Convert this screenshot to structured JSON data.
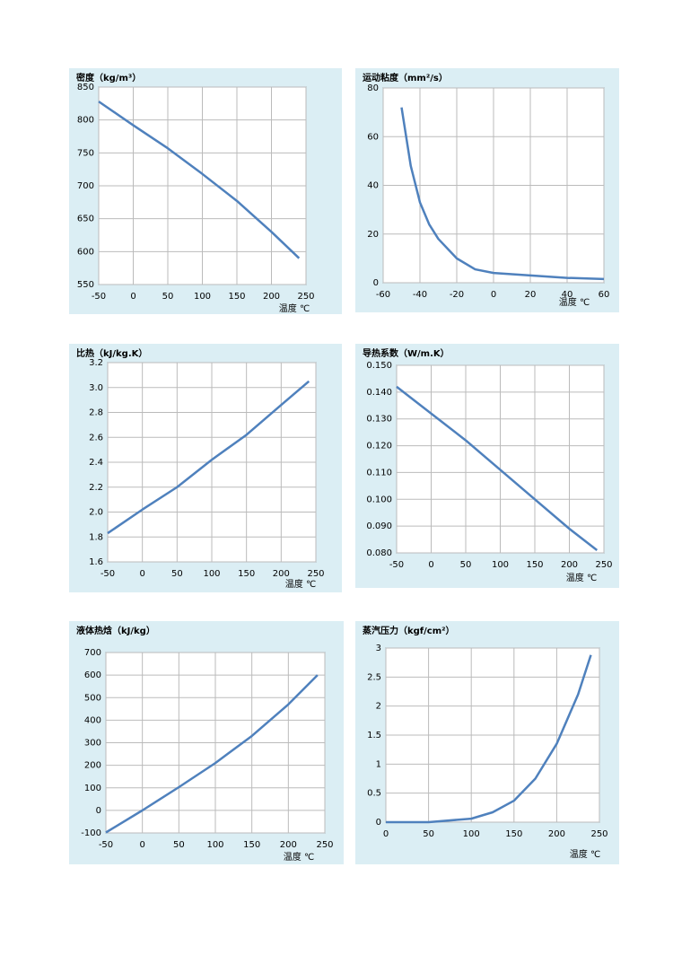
{
  "chart_data": [
    {
      "type": "line",
      "title": "密度（kg/m³）",
      "x_label": "温度 ℃",
      "x": [
        -50,
        0,
        50,
        100,
        150,
        200,
        240
      ],
      "series": [
        {
          "color": "#4f81bd",
          "values": [
            828,
            792,
            757,
            718,
            677,
            630,
            590
          ]
        }
      ],
      "xlim": [
        -50,
        250
      ],
      "xticks": [
        -50,
        0,
        50,
        100,
        150,
        200,
        250
      ],
      "ylim": [
        550,
        850
      ],
      "yticks": [
        550,
        600,
        650,
        700,
        750,
        800,
        850
      ],
      "grid": true
    },
    {
      "type": "line",
      "title": "运动粘度（mm²/s）",
      "x_label": "温度 ℃",
      "x": [
        -50,
        -45,
        -40,
        -35,
        -30,
        -20,
        -10,
        0,
        20,
        40,
        60
      ],
      "series": [
        {
          "color": "#4f81bd",
          "values": [
            72,
            48,
            33,
            24,
            18,
            10,
            5.5,
            4,
            3,
            2,
            1.5
          ]
        }
      ],
      "xlim": [
        -60,
        60
      ],
      "xticks": [
        -60,
        -40,
        -20,
        0,
        20,
        40,
        60
      ],
      "ylim": [
        0,
        80
      ],
      "yticks": [
        0,
        20,
        40,
        60,
        80
      ],
      "grid": true
    },
    {
      "type": "line",
      "title": "比热（kJ/kg.K）",
      "x_label": "温度 ℃",
      "x": [
        -50,
        0,
        50,
        100,
        150,
        200,
        240
      ],
      "series": [
        {
          "color": "#4f81bd",
          "values": [
            1.83,
            2.02,
            2.2,
            2.42,
            2.62,
            2.86,
            3.05
          ]
        }
      ],
      "xlim": [
        -50,
        250
      ],
      "xticks": [
        -50,
        0,
        50,
        100,
        150,
        200,
        250
      ],
      "ylim": [
        1.6,
        3.2
      ],
      "yticks": [
        1.6,
        1.8,
        {
          "value": 2,
          "label": "2.0"
        },
        2.2,
        2.4,
        2.6,
        2.8,
        {
          "value": 3,
          "label": "3.0"
        },
        3.2
      ],
      "grid": true
    },
    {
      "type": "line",
      "title": "导热系数（W/m.K）",
      "x_label": "温度 ℃",
      "x": [
        -50,
        0,
        50,
        100,
        150,
        200,
        240
      ],
      "series": [
        {
          "color": "#4f81bd",
          "values": [
            0.142,
            0.132,
            0.122,
            0.111,
            0.1,
            0.089,
            0.081
          ]
        }
      ],
      "xlim": [
        -50,
        250
      ],
      "xticks": [
        -50,
        0,
        50,
        100,
        150,
        200,
        250
      ],
      "ylim": [
        0.08,
        0.15
      ],
      "yticks": [
        {
          "value": 0.08,
          "label": "0.080"
        },
        {
          "value": 0.09,
          "label": "0.090"
        },
        {
          "value": 0.1,
          "label": "0.100"
        },
        {
          "value": 0.11,
          "label": "0.110"
        },
        {
          "value": 0.12,
          "label": "0.120"
        },
        {
          "value": 0.13,
          "label": "0.130"
        },
        {
          "value": 0.14,
          "label": "0.140"
        },
        {
          "value": 0.15,
          "label": "0.150"
        }
      ],
      "grid": true
    },
    {
      "type": "line",
      "title": "液体热焓（kJ/kg）",
      "x_label": "温度 ℃",
      "x": [
        -50,
        0,
        50,
        100,
        150,
        200,
        240
      ],
      "series": [
        {
          "color": "#4f81bd",
          "values": [
            -98,
            0,
            103,
            210,
            330,
            470,
            600
          ]
        }
      ],
      "xlim": [
        -50,
        250
      ],
      "xticks": [
        -50,
        0,
        50,
        100,
        150,
        200,
        250
      ],
      "ylim": [
        -100,
        700
      ],
      "yticks": [
        -100,
        0,
        100,
        200,
        300,
        400,
        500,
        600,
        700
      ],
      "grid": true
    },
    {
      "type": "line",
      "title": "蒸汽压力（kgf/cm²）",
      "x_label": "温度 ℃",
      "x": [
        0,
        50,
        100,
        125,
        150,
        175,
        200,
        225,
        240
      ],
      "series": [
        {
          "color": "#4f81bd",
          "values": [
            0,
            0,
            0.06,
            0.17,
            0.37,
            0.75,
            1.35,
            2.2,
            2.88
          ]
        }
      ],
      "xlim": [
        0,
        250
      ],
      "xticks": [
        0,
        50,
        100,
        150,
        200,
        250
      ],
      "ylim": [
        0,
        3
      ],
      "yticks": [
        0,
        0.5,
        1,
        1.5,
        2,
        2.5,
        3
      ],
      "grid": true
    }
  ]
}
